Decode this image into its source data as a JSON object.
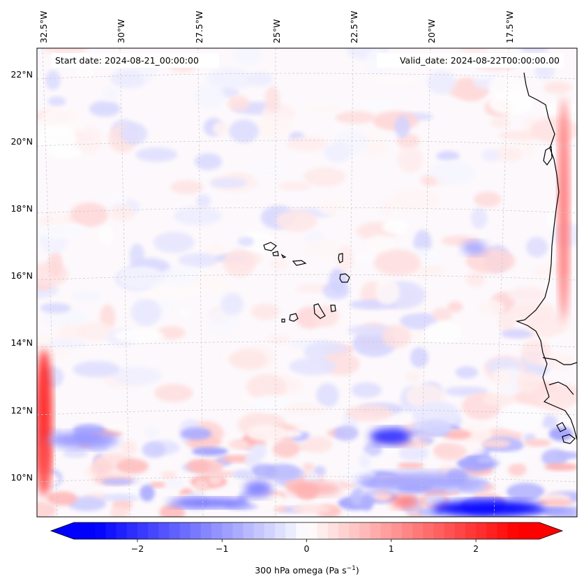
{
  "map": {
    "start_label": "Start date: 2024-08-21_00:00:00",
    "valid_label": "Valid_date: 2024-08-22T00:00:00.00",
    "lon_labels": [
      "32.5°W",
      "30°W",
      "27.5°W",
      "25°W",
      "22.5°W",
      "20°W",
      "17.5°W"
    ],
    "lat_labels": [
      "22°N",
      "20°N",
      "18°N",
      "16°N",
      "14°N",
      "12°N",
      "10°N"
    ],
    "colorbar": {
      "ticks": [
        "−2",
        "−1",
        "0",
        "1",
        "2"
      ],
      "tick_values": [
        -2,
        -1,
        0,
        1,
        2
      ],
      "range": [
        -2.75,
        2.75
      ],
      "label_prefix": "300 hPa omega (Pa s",
      "label_exp": "−1",
      "label_suffix": ")",
      "cmap": "bwr",
      "neg_color": "#0000ff",
      "zero_color": "#ffffff",
      "pos_color": "#ff0000"
    },
    "coastline_color": "#000000",
    "grid_color": "#c8c8c8"
  }
}
